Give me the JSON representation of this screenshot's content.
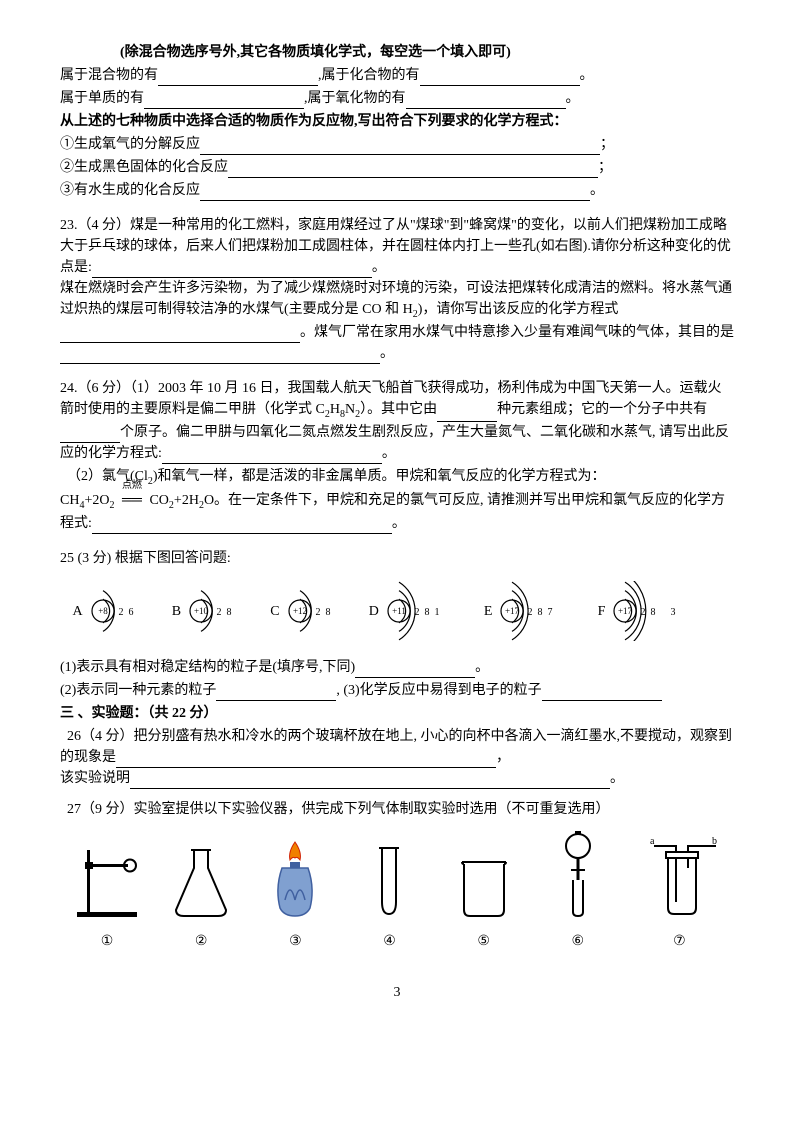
{
  "header": {
    "note": "(除混合物选序号外,其它各物质填化学式，每空选一个填入即可)"
  },
  "q22": {
    "line1a": "属于混合物的有",
    "line1b": ",属于化合物的有",
    "line1end": "。",
    "line2a": "属于单质的有",
    "line2b": ",属于氧化物的有",
    "line2end": "。",
    "prompt2": "从上述的七种物质中选择合适的物质作为反应物,写出符合下列要求的化学方程式：",
    "item1": "①生成氧气的分解反应",
    "item2": "②生成黑色固体的化合反应",
    "item3": "③有水生成的化合反应",
    "semicolon": "；",
    "period": "。"
  },
  "q23": {
    "title": "23.（4 分）煤是一种常用的化工燃料，家庭用煤经过了从\"煤球\"到\"蜂窝煤\"的变化，以前人们把煤粉加工成略大于乒乓球的球体，后来人们把煤粉加工成圆柱体，并在圆柱体内打上一些孔(如右图).请你分析这种变化的优点是:",
    "line2a": "煤在燃烧时会产生许多污染物，为了减少煤燃烧时对环境的污染，可设法把煤转化成清洁的燃料。将水蒸气通过炽热的煤层可制得较洁净的水煤气(主要成分是 CO 和 H",
    "line2b": ")，请你写出该反应的化学方程式",
    "line2c": "。煤气厂常在家用水煤气中特意掺入少量有难闻气味的气体，其目的是",
    "end": "。"
  },
  "q24": {
    "p1a": "24.（6 分）（1）2003 年 10 月 16 日，我国载人航天飞船首飞获得成功，杨利伟成为中国飞天第一人。运载火箭时使用的主要原料是偏二甲肼（化学式 C",
    "p1b": "H",
    "p1c": "N",
    "p1d": "）。其中它由",
    "p1e": "种元素组成；它的一个分子中共有",
    "p1f": "个原子。偏二甲肼与四氧化二氮点燃发生剧烈反应，产生大量氮气、二氧化碳和水蒸气, 请写出此反应的化学方程式:",
    "p1end": "。",
    "p2a": "（2）氯气(Cl",
    "p2b": ")和氧气一样，都是活泼的非金属单质。甲烷和氧气反应的化学方程式为：",
    "eq_lhs": "CH",
    "eq_plus": "+2O",
    "eq_cond": "点燃",
    "eq_arrow": "══",
    "eq_rhs1": "CO",
    "eq_rhs2": "+2H",
    "eq_rhs3": "O。在一定条件下，甲烷和充足的氯气可反应,  请推测并写出甲烷和氯气反应的化学方程式:",
    "end": "。"
  },
  "q25": {
    "title": "25 (3 分) 根据下图回答问题:",
    "atoms": [
      {
        "label": "A",
        "core": "+8",
        "shells": [
          "2",
          "6"
        ]
      },
      {
        "label": "B",
        "core": "+10",
        "shells": [
          "2",
          "8"
        ]
      },
      {
        "label": "C",
        "core": "+12",
        "shells": [
          "2",
          "8"
        ]
      },
      {
        "label": "D",
        "core": "+11",
        "shells": [
          "2",
          "8",
          "1"
        ]
      },
      {
        "label": "E",
        "core": "+17",
        "shells": [
          "2",
          "8",
          "7"
        ]
      },
      {
        "label": "F",
        "core": "+17",
        "shells": [
          "2",
          "8",
          "",
          "3"
        ]
      }
    ],
    "q1": "(1)表示具有相对稳定结构的粒子是(填序号,下同)",
    "q2": "(2)表示同一种元素的粒子",
    "q3": "(3)化学反应中易得到电子的粒子",
    "end": "。",
    "comma": ",  "
  },
  "section3": {
    "title": "三 、实验题：（共 22 分）"
  },
  "q26": {
    "text": "26（4 分）把分别盛有热水和冷水的两个玻璃杯放在地上,   小心的向杯中各滴入一滴红墨水,不要搅动，观察到的现象是",
    "text2": "该实验说明",
    "comma": "，",
    "end": "。"
  },
  "q27": {
    "text": "27（9 分）实验室提供以下实验仪器，供完成下列气体制取实验时选用（不可重复选用）",
    "labels": [
      "①",
      "②",
      "③",
      "④",
      "⑤",
      "⑥",
      "⑦"
    ],
    "ab_a": "a",
    "ab_b": "b"
  },
  "pageNum": "3",
  "style": {
    "accent_color": "#000000",
    "svg_stroke": "#000000",
    "flame_orange": "#f08000",
    "flame_red": "#d02000",
    "burner_base": "#4060a0",
    "burner_body": "#80a0d0"
  }
}
